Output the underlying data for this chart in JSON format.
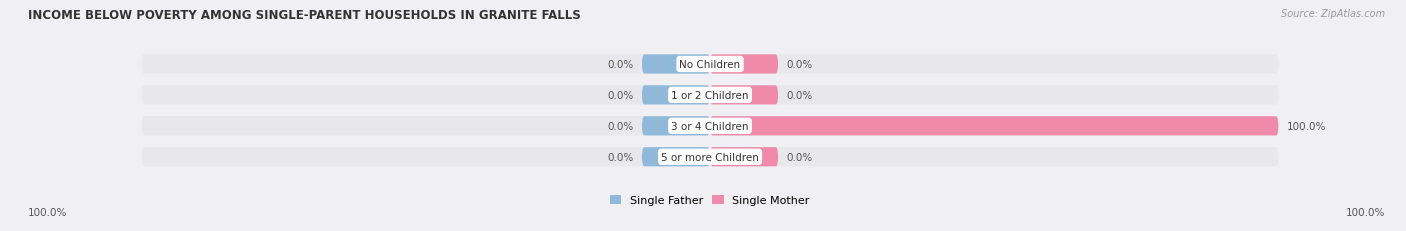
{
  "title": "INCOME BELOW POVERTY AMONG SINGLE-PARENT HOUSEHOLDS IN GRANITE FALLS",
  "source": "Source: ZipAtlas.com",
  "categories": [
    "No Children",
    "1 or 2 Children",
    "3 or 4 Children",
    "5 or more Children"
  ],
  "single_father": [
    0.0,
    0.0,
    0.0,
    0.0
  ],
  "single_mother": [
    0.0,
    0.0,
    100.0,
    0.0
  ],
  "father_color": "#90b8d8",
  "mother_color": "#f08aaa",
  "bar_bg_color": "#e8e8ec",
  "fig_bg_color": "#f0f0f4",
  "title_color": "#333333",
  "source_color": "#999999",
  "label_color": "#555555",
  "cat_label_color": "#333333",
  "legend_father": "Single Father",
  "legend_mother": "Single Mother",
  "axis_label_left": "100.0%",
  "axis_label_right": "100.0%",
  "max_val": 100.0,
  "bar_height": 0.62,
  "figsize": [
    14.06,
    2.32
  ],
  "dpi": 100,
  "father_stub_pct": 12.0,
  "mother_stub_pct": 12.0
}
